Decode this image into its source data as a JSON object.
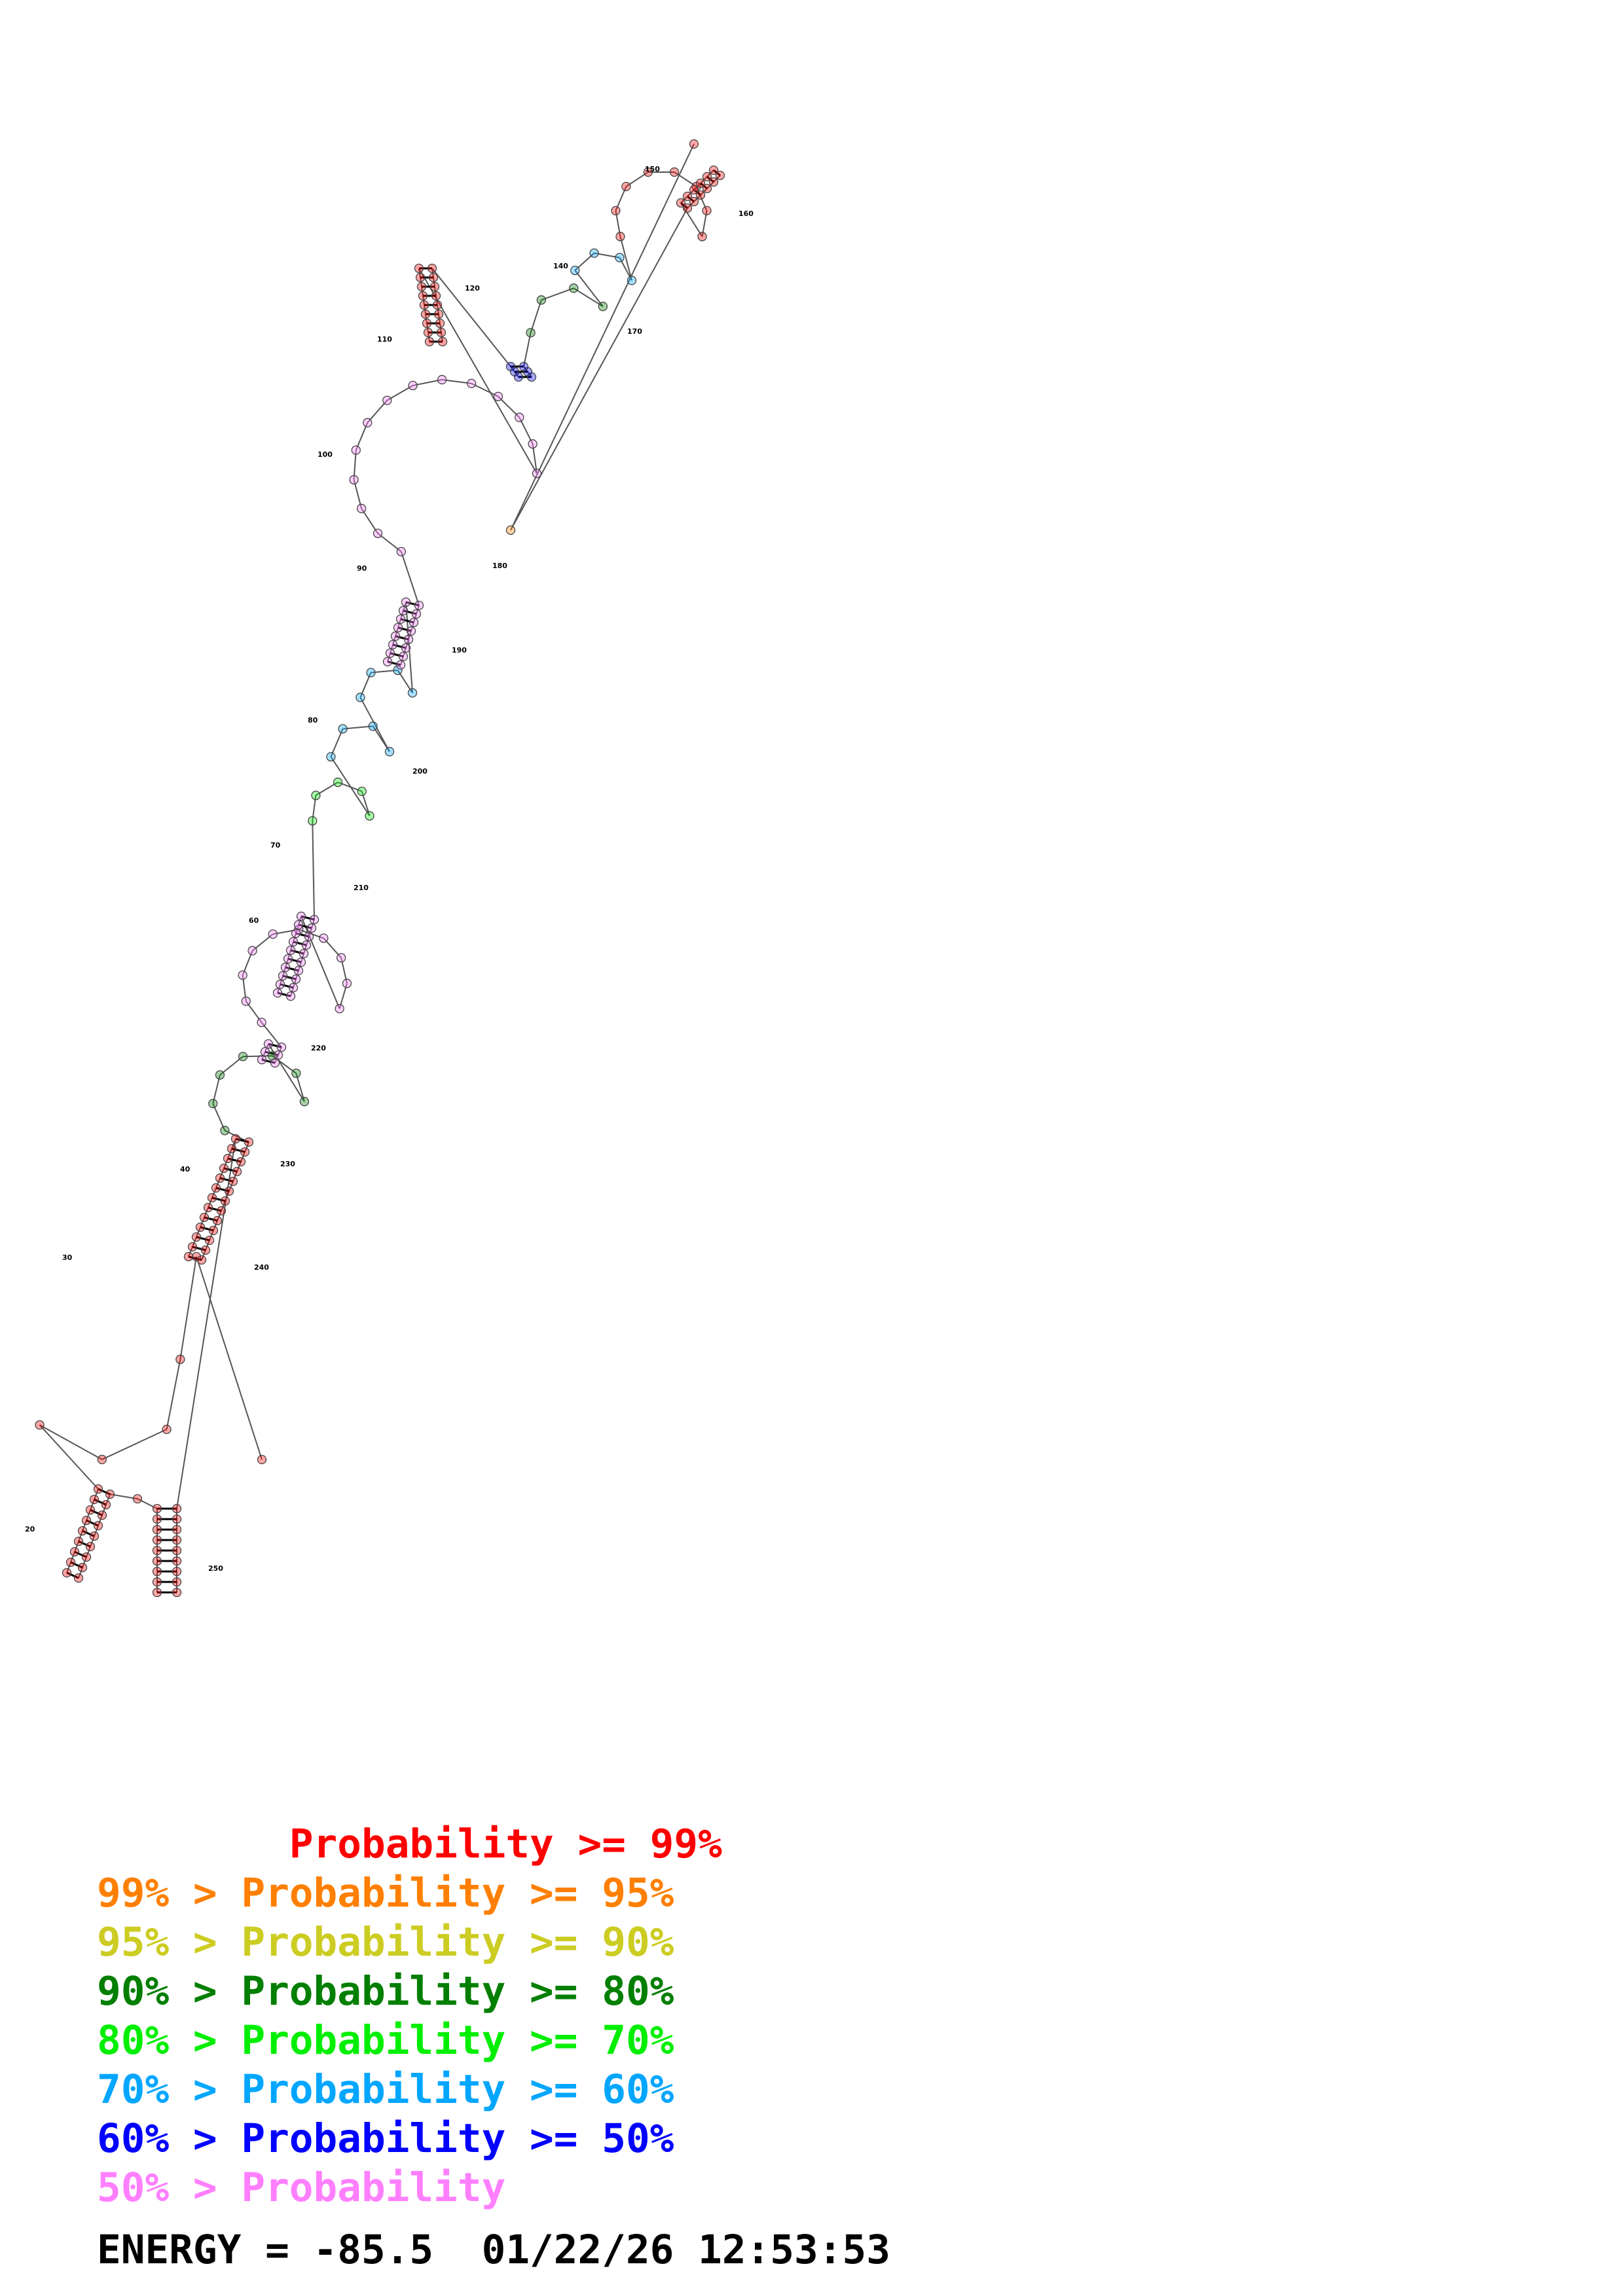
{
  "colors": {
    "p99": "#ff0000",
    "p95": "#ff7f00",
    "p90": "#cccc22",
    "p80": "#007f00",
    "p70": "#00ee00",
    "p60": "#00a6ff",
    "p50": "#0000ff",
    "plow": "#ff7fff"
  },
  "numbering": [
    "20",
    "30",
    "40",
    "60",
    "70",
    "80",
    "90",
    "100",
    "110",
    "120",
    "140",
    "150",
    "160",
    "170",
    "180",
    "190",
    "200",
    "210",
    "220",
    "230",
    "240",
    "250"
  ],
  "legend": [
    {
      "text": "        Probability >= 99%",
      "color_key": "p99"
    },
    {
      "text": "99% > Probability >= 95%",
      "color_key": "p95"
    },
    {
      "text": "95% > Probability >= 90%",
      "color_key": "p90"
    },
    {
      "text": "90% > Probability >= 80%",
      "color_key": "p80"
    },
    {
      "text": "80% > Probability >= 70%",
      "color_key": "p70"
    },
    {
      "text": "70% > Probability >= 60%",
      "color_key": "p60"
    },
    {
      "text": "60% > Probability >= 50%",
      "color_key": "p50"
    },
    {
      "text": "50% > Probability",
      "color_key": "plow"
    }
  ],
  "footer": "ENERGY = -85.5  01/22/26 12:53:53"
}
